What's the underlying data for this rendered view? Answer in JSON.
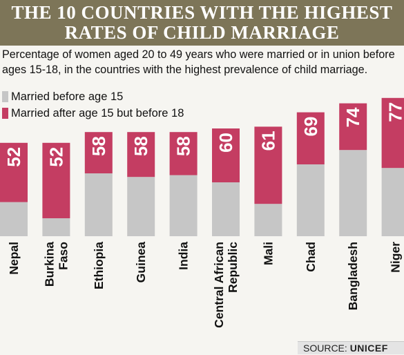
{
  "title": {
    "line1": "THE 10 COUNTRIES WITH THE HIGHEST",
    "line2": "RATES OF CHILD MARRIAGE"
  },
  "subtitle": "Percentage of women aged 20 to 49 years who were married or in union before ages 15-18, in the countries with the highest prevalence of child marriage.",
  "source": {
    "prefix": "SOURCE:",
    "name": "UNICEF"
  },
  "colors": {
    "before15": "#c6c6c6",
    "between15_18": "#c43d62",
    "title_bg": "#7d7558",
    "background": "#f6f5f1"
  },
  "chart_data": {
    "type": "bar",
    "stacked": true,
    "title": "THE 10 COUNTRIES WITH THE HIGHEST RATES OF CHILD MARRIAGE",
    "categories": [
      "Nepal",
      "Burkina Faso",
      "Ethiopia",
      "Guinea",
      "India",
      "Central African Republic",
      "Mali",
      "Chad",
      "Bangladesh",
      "Niger"
    ],
    "category_lines": [
      [
        "Nepal"
      ],
      [
        "Burkina",
        "Faso"
      ],
      [
        "Ethiopia"
      ],
      [
        "Guinea"
      ],
      [
        "India"
      ],
      [
        "Central African",
        "Republic"
      ],
      [
        "Mali"
      ],
      [
        "Chad"
      ],
      [
        "Bangladesh"
      ],
      [
        "Niger"
      ]
    ],
    "totals": [
      52,
      52,
      58,
      58,
      58,
      60,
      61,
      69,
      74,
      77
    ],
    "total_labels": [
      "52",
      "52",
      "58",
      "58",
      "58",
      "60",
      "61",
      "69",
      "74",
      "77"
    ],
    "series": [
      {
        "name": "Married before age 15",
        "values": [
          19,
          10,
          35,
          33,
          34,
          30,
          18,
          40,
          48,
          38
        ]
      },
      {
        "name": "Married after age 15 but before 18",
        "values": [
          33,
          42,
          23,
          25,
          24,
          30,
          43,
          29,
          26,
          39
        ]
      }
    ],
    "ylim": [
      0,
      100
    ],
    "grid": false,
    "legend": "top-left"
  }
}
